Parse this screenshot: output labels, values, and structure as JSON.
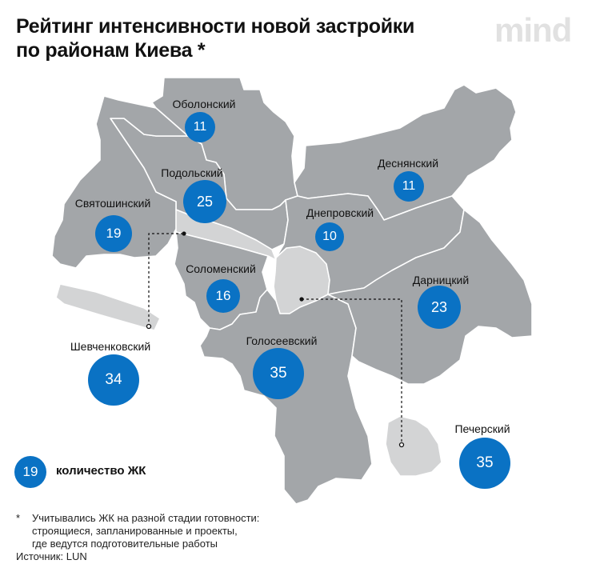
{
  "title": {
    "line1": "Рейтинг интенсивности новой застройки",
    "line2": "по районам Киева *"
  },
  "logo": "mind",
  "districts": [
    {
      "id": "obolonsky",
      "name": "Оболонский",
      "count": "11"
    },
    {
      "id": "podolsky",
      "name": "Подольский",
      "count": "25"
    },
    {
      "id": "sviatoshynsky",
      "name": "Святошинский",
      "count": "19"
    },
    {
      "id": "solomensky",
      "name": "Соломенский",
      "count": "16"
    },
    {
      "id": "shevchenkovsky",
      "name": "Шевченковский",
      "count": "34"
    },
    {
      "id": "holosiivsky",
      "name": "Голосеевский",
      "count": "35"
    },
    {
      "id": "desniansky",
      "name": "Деснянский",
      "count": "11"
    },
    {
      "id": "dniprovsky",
      "name": "Днепровский",
      "count": "10"
    },
    {
      "id": "darnytsky",
      "name": "Дарницкий",
      "count": "23"
    },
    {
      "id": "pechersky",
      "name": "Печерский",
      "count": "35"
    }
  ],
  "legend": {
    "sample_value": "19",
    "label": "количество ЖК"
  },
  "footnote": {
    "marker": "*",
    "lines": [
      "Учитывались ЖК на разной стадии готовности:",
      "строящиеся, запланированные и проекты,",
      "где ведутся подготовительные работы"
    ]
  },
  "source": "Источник: LUN",
  "colors": {
    "district_fill": "#a3a6a9",
    "district_stroke": "#ffffff",
    "highlight_fill": "#d3d4d5",
    "badge": "#0a72c4"
  }
}
